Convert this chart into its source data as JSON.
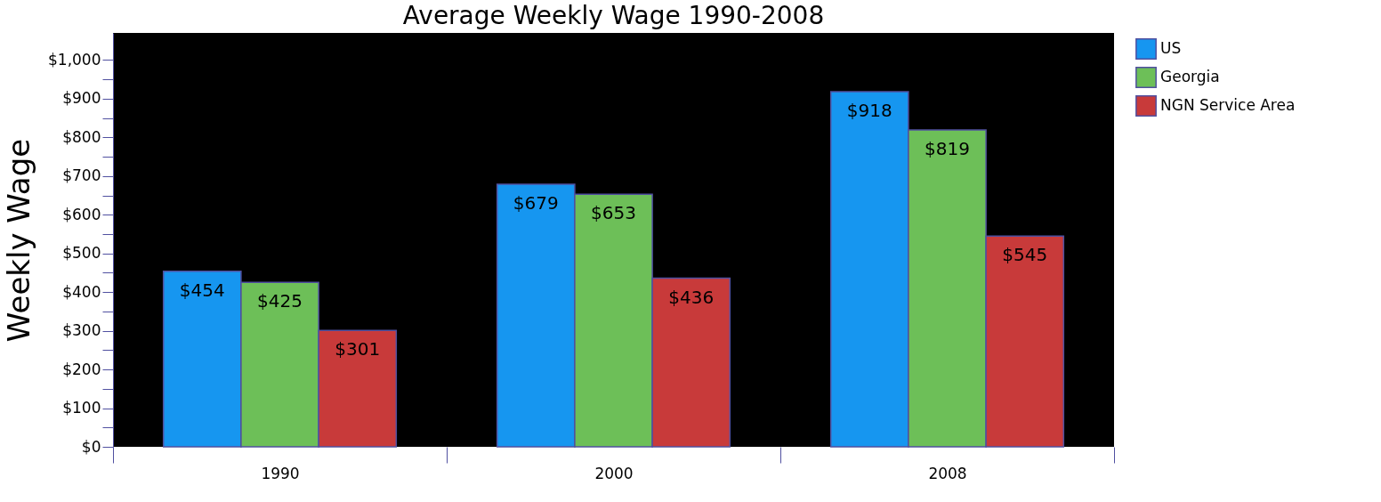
{
  "chart_data": {
    "type": "bar",
    "title": "Average Weekly Wage 1990-2008",
    "ylabel": "Weekly Wage",
    "categories": [
      "1990",
      "2000",
      "2008"
    ],
    "series": [
      {
        "name": "US",
        "color": "#1696f0",
        "values": [
          454,
          679,
          918
        ]
      },
      {
        "name": "Georgia",
        "color": "#6dbf58",
        "values": [
          425,
          653,
          819
        ]
      },
      {
        "name": "NGN Service Area",
        "color": "#c83a3a",
        "values": [
          301,
          436,
          545
        ]
      }
    ],
    "value_labels": [
      [
        "$454",
        "$679",
        "$918"
      ],
      [
        "$425",
        "$653",
        "$819"
      ],
      [
        "$301",
        "$436",
        "$545"
      ]
    ],
    "ylim": [
      0,
      1070
    ],
    "yticks": [
      {
        "value": 0,
        "label": "$0"
      },
      {
        "value": 50,
        "label": null
      },
      {
        "value": 100,
        "label": "$100"
      },
      {
        "value": 150,
        "label": null
      },
      {
        "value": 200,
        "label": "$200"
      },
      {
        "value": 250,
        "label": null
      },
      {
        "value": 300,
        "label": "$300"
      },
      {
        "value": 350,
        "label": null
      },
      {
        "value": 400,
        "label": "$400"
      },
      {
        "value": 450,
        "label": null
      },
      {
        "value": 500,
        "label": "$500"
      },
      {
        "value": 550,
        "label": null
      },
      {
        "value": 600,
        "label": "$600"
      },
      {
        "value": 650,
        "label": null
      },
      {
        "value": 700,
        "label": "$700"
      },
      {
        "value": 750,
        "label": null
      },
      {
        "value": 800,
        "label": "$800"
      },
      {
        "value": 850,
        "label": null
      },
      {
        "value": 900,
        "label": "$900"
      },
      {
        "value": 950,
        "label": null
      },
      {
        "value": 1000,
        "label": "$1,000"
      }
    ],
    "grid": false,
    "legend": "right"
  }
}
